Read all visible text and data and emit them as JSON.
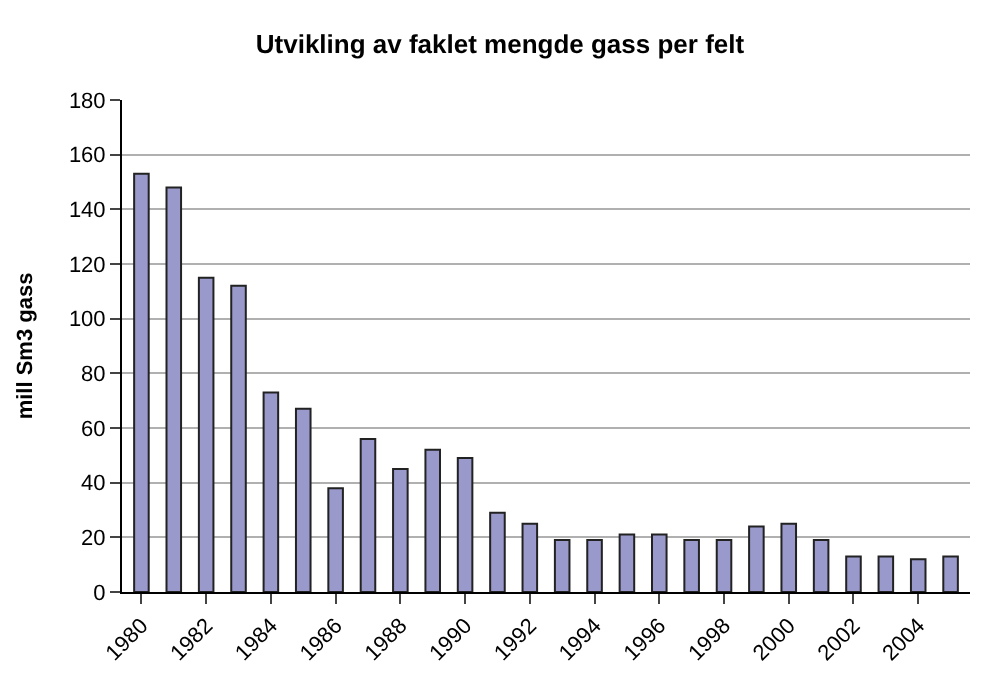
{
  "chart_data": {
    "type": "bar",
    "title": "Utvikling av faklet mengde gass per felt",
    "ylabel": "mill Sm3 gass",
    "categories": [
      "1980",
      null,
      "1982",
      null,
      "1984",
      null,
      "1986",
      null,
      "1988",
      null,
      "1990",
      null,
      "1992",
      null,
      "1994",
      null,
      "1996",
      null,
      "1998",
      null,
      "2000",
      null,
      "2002",
      null,
      "2004",
      null
    ],
    "values": [
      153,
      148,
      115,
      112,
      73,
      67,
      38,
      56,
      45,
      52,
      49,
      29,
      25,
      19,
      19,
      21,
      21,
      19,
      19,
      24,
      25,
      19,
      13,
      13,
      12,
      13
    ],
    "color": "#9999cc",
    "ylim": [
      0,
      180
    ],
    "yticks": [
      0,
      20,
      40,
      60,
      80,
      100,
      120,
      140,
      160,
      180
    ],
    "grid": "y"
  }
}
